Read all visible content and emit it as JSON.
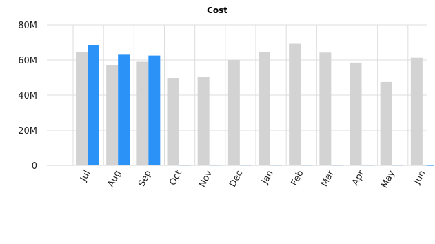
{
  "chart_data": {
    "type": "bar",
    "title": "Cost",
    "xlabel": "",
    "ylabel": "",
    "categories": [
      "Jul",
      "Aug",
      "Sep",
      "Oct",
      "Nov",
      "Dec",
      "Jan",
      "Feb",
      "Mar",
      "Apr",
      "May",
      "Jun"
    ],
    "ylim": [
      0,
      80000000
    ],
    "yticks": [
      {
        "value": 0,
        "label": "0"
      },
      {
        "value": 20000000,
        "label": "20M"
      },
      {
        "value": 40000000,
        "label": "40M"
      },
      {
        "value": 60000000,
        "label": "60M"
      },
      {
        "value": 80000000,
        "label": "80M"
      }
    ],
    "grid": true,
    "legend": "none",
    "series": [
      {
        "color": "#d3d3d3",
        "values": [
          64500000,
          57000000,
          59000000,
          49800000,
          50300000,
          60000000,
          64500000,
          69200000,
          64200000,
          58500000,
          47500000,
          61300000
        ]
      },
      {
        "color": "#2b93f7",
        "values": [
          68500000,
          63000000,
          62500000,
          0,
          0,
          0,
          0,
          0,
          0,
          0,
          0,
          0
        ]
      }
    ]
  }
}
